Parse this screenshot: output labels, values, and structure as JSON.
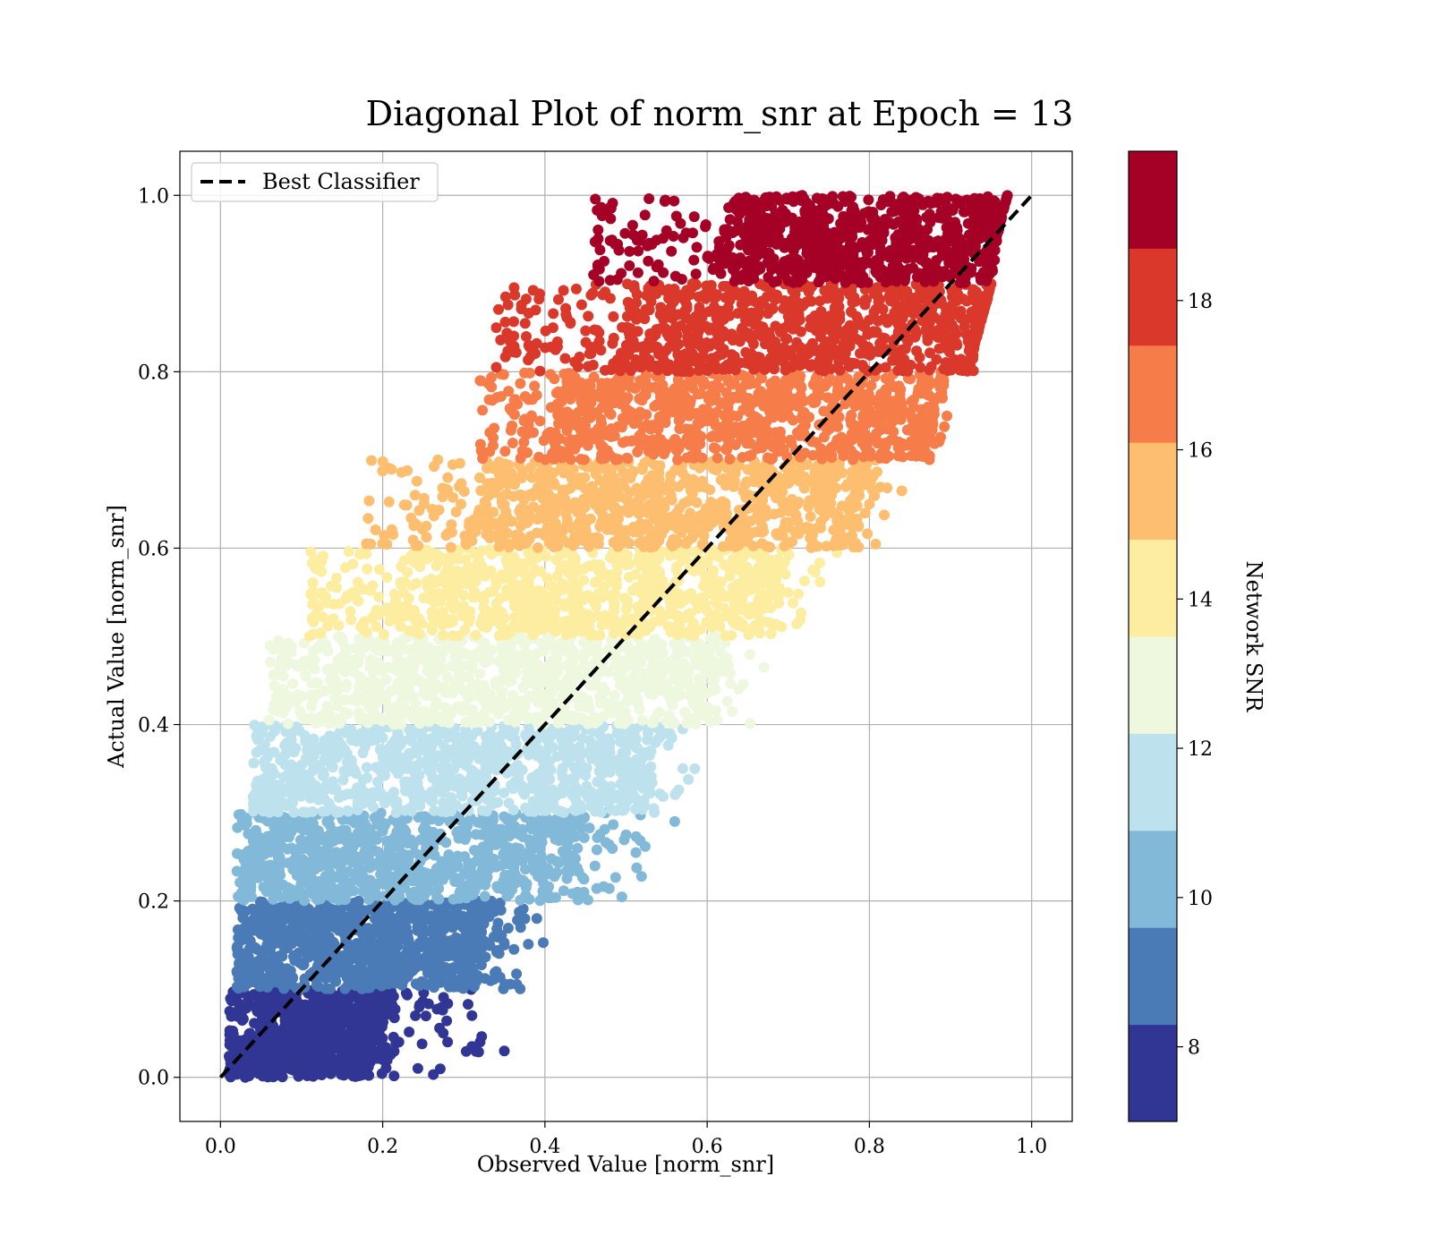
{
  "chart_data": {
    "type": "scatter",
    "title": "Diagonal Plot of norm_snr at Epoch = 13",
    "xlabel": "Observed Value [norm_snr]",
    "ylabel": "Actual Value [norm_snr]",
    "xlim": [
      -0.05,
      1.05
    ],
    "ylim": [
      -0.05,
      1.05
    ],
    "xticks": [
      "0.0",
      "0.2",
      "0.4",
      "0.6",
      "0.8",
      "1.0"
    ],
    "yticks": [
      "0.0",
      "0.2",
      "0.4",
      "0.6",
      "0.8",
      "1.0"
    ],
    "grid": true,
    "legend": {
      "location": "top-left",
      "entries": [
        "Best Classifier"
      ]
    },
    "reference_line": {
      "name": "Best Classifier",
      "style": "dashed",
      "color": "#000000",
      "x": [
        0.0,
        1.0
      ],
      "y": [
        0.0,
        1.0
      ]
    },
    "colorbar": {
      "label": "Network SNR",
      "range": [
        7,
        20
      ],
      "ticks": [
        "8",
        "10",
        "12",
        "14",
        "16",
        "18"
      ],
      "tick_values": [
        8,
        10,
        12,
        14,
        16,
        18
      ],
      "colormap": "RdYlBu_r",
      "bands": [
        {
          "snr_min": 7,
          "snr_max": 8.3,
          "color": "#313695",
          "y_min": 0.0,
          "y_max": 0.1,
          "x_core": [
            0.02,
            0.18
          ],
          "x_spread": [
            0.01,
            0.35
          ],
          "points": [
            [
              0.35,
              0.03
            ],
            [
              0.32,
              0.04
            ],
            [
              0.31,
              0.035
            ],
            [
              0.31,
              0.07
            ],
            [
              0.28,
              0.04
            ],
            [
              0.22,
              0.04
            ],
            [
              0.2,
              0.02
            ]
          ]
        },
        {
          "snr_min": 8.3,
          "snr_max": 9.6,
          "color": "#4a7bb7",
          "y_min": 0.1,
          "y_max": 0.2,
          "x_core": [
            0.03,
            0.3
          ],
          "x_spread": [
            0.02,
            0.42
          ],
          "points": [
            [
              0.34,
              0.12
            ],
            [
              0.35,
              0.15
            ],
            [
              0.39,
              0.18
            ],
            [
              0.37,
              0.17
            ],
            [
              0.3,
              0.12
            ]
          ]
        },
        {
          "snr_min": 9.6,
          "snr_max": 10.9,
          "color": "#83b9d8",
          "y_min": 0.2,
          "y_max": 0.3,
          "x_core": [
            0.03,
            0.4
          ],
          "x_spread": [
            0.02,
            0.56
          ],
          "points": [
            [
              0.56,
              0.29
            ],
            [
              0.5,
              0.275
            ],
            [
              0.43,
              0.27
            ],
            [
              0.43,
              0.24
            ],
            [
              0.44,
              0.21
            ]
          ]
        },
        {
          "snr_min": 10.9,
          "snr_max": 12.2,
          "color": "#bde2ee",
          "y_min": 0.3,
          "y_max": 0.4,
          "x_core": [
            0.06,
            0.5
          ],
          "x_spread": [
            0.04,
            0.6
          ],
          "points": [
            [
              0.57,
              0.35
            ],
            [
              0.57,
              0.395
            ],
            [
              0.55,
              0.39
            ],
            [
              0.49,
              0.36
            ]
          ]
        },
        {
          "snr_min": 12.2,
          "snr_max": 13.5,
          "color": "#edf8df",
          "y_min": 0.4,
          "y_max": 0.5,
          "x_core": [
            0.12,
            0.58
          ],
          "x_spread": [
            0.06,
            0.67
          ],
          "points": [
            [
              0.67,
              0.465
            ],
            [
              0.6,
              0.42
            ],
            [
              0.61,
              0.44
            ],
            [
              0.07,
              0.415
            ]
          ]
        },
        {
          "snr_min": 13.5,
          "snr_max": 14.8,
          "color": "#fdeda1",
          "y_min": 0.5,
          "y_max": 0.6,
          "x_core": [
            0.2,
            0.66
          ],
          "x_spread": [
            0.11,
            0.76
          ],
          "points": [
            [
              0.76,
              0.595
            ],
            [
              0.73,
              0.575
            ],
            [
              0.11,
              0.5
            ],
            [
              0.17,
              0.54
            ]
          ]
        },
        {
          "snr_min": 14.8,
          "snr_max": 16.1,
          "color": "#fdbe6f",
          "y_min": 0.6,
          "y_max": 0.7,
          "x_core": [
            0.3,
            0.76
          ],
          "x_spread": [
            0.18,
            0.84
          ],
          "points": [
            [
              0.18,
              0.605
            ],
            [
              0.24,
              0.66
            ],
            [
              0.84,
              0.665
            ],
            [
              0.8,
              0.65
            ]
          ]
        },
        {
          "snr_min": 16.1,
          "snr_max": 17.4,
          "color": "#f67d4a",
          "y_min": 0.7,
          "y_max": 0.8,
          "x_core": [
            0.4,
            0.86
          ],
          "x_spread": [
            0.32,
            0.9
          ],
          "points": [
            [
              0.32,
              0.79
            ],
            [
              0.86,
              0.725
            ],
            [
              0.89,
              0.77
            ],
            [
              0.85,
              0.735
            ]
          ]
        },
        {
          "snr_min": 17.4,
          "snr_max": 18.7,
          "color": "#da382a",
          "y_min": 0.8,
          "y_max": 0.9,
          "x_core": [
            0.48,
            0.92
          ],
          "x_spread": [
            0.34,
            0.93
          ],
          "points": [
            [
              0.34,
              0.85
            ],
            [
              0.41,
              0.85
            ],
            [
              0.38,
              0.83
            ],
            [
              0.92,
              0.88
            ],
            [
              0.93,
              0.86
            ]
          ]
        },
        {
          "snr_min": 18.7,
          "snr_max": 20,
          "color": "#a50026",
          "y_min": 0.9,
          "y_max": 1.0,
          "x_core": [
            0.6,
            0.94
          ],
          "x_spread": [
            0.46,
            0.96
          ],
          "points": [
            [
              0.46,
              0.91
            ],
            [
              0.52,
              0.955
            ],
            [
              0.55,
              0.96
            ],
            [
              0.96,
              0.985
            ]
          ]
        }
      ]
    }
  }
}
